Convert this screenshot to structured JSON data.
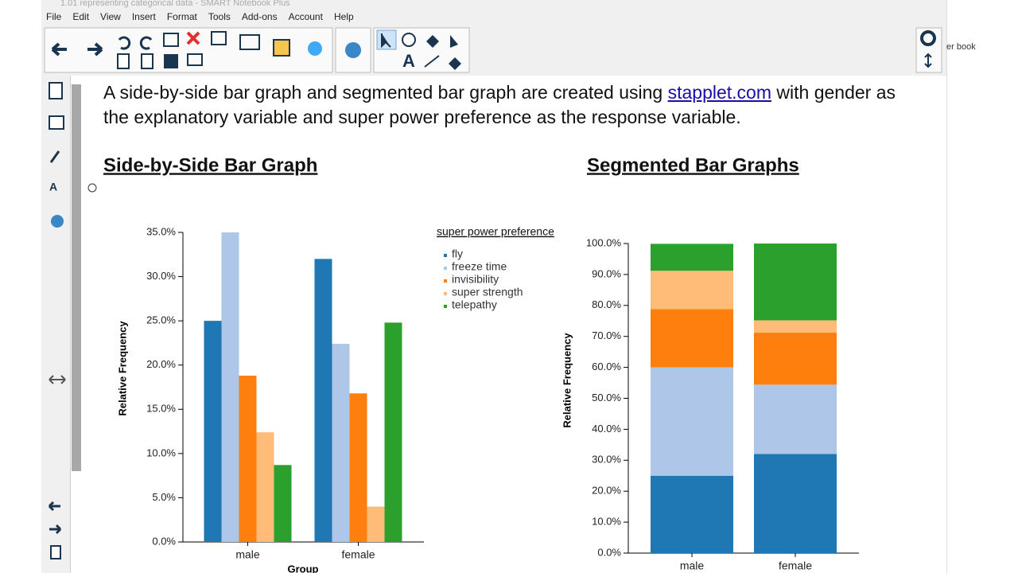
{
  "window": {
    "title": "1.01 representing categorical data - SMART Notebook Plus",
    "side_text": "er book"
  },
  "menu": [
    "File",
    "Edit",
    "View",
    "Insert",
    "Format",
    "Tools",
    "Add-ons",
    "Account",
    "Help"
  ],
  "slide": {
    "text_before": "A side-by-side bar graph and segmented bar graph are created using ",
    "link": "stapplet.com",
    "text_after": " with gender as the explanatory variable and super power preference as the response variable."
  },
  "chart_data": [
    {
      "type": "bar",
      "title": "Side-by-Side Bar Graph",
      "stacked": false,
      "categories": [
        "male",
        "female"
      ],
      "x_label": "Group",
      "y_label": "Relative Frequency",
      "legend": true,
      "legend_title": "super power preference",
      "series": [
        {
          "name": "fly",
          "color": "#1f77b4",
          "values": [
            25.0,
            32.0
          ]
        },
        {
          "name": "freeze time",
          "color": "#aec7e8",
          "values": [
            35.0,
            22.4
          ]
        },
        {
          "name": "invisibility",
          "color": "#ff7f0e",
          "values": [
            18.8,
            16.8
          ]
        },
        {
          "name": "super strength",
          "color": "#ffbb78",
          "values": [
            12.4,
            4.0
          ]
        },
        {
          "name": "telepathy",
          "color": "#2ca02c",
          "values": [
            8.7,
            24.8
          ]
        }
      ],
      "ylim": [
        0,
        35
      ],
      "yticks": [
        {
          "value": 0,
          "label": "0.0%"
        },
        {
          "value": 5,
          "label": "5.0%"
        },
        {
          "value": 10,
          "label": "10.0%"
        },
        {
          "value": 15,
          "label": "15.0%"
        },
        {
          "value": 20,
          "label": "20.0%"
        },
        {
          "value": 25,
          "label": "25.0%"
        },
        {
          "value": 30,
          "label": "30.0%"
        },
        {
          "value": 35,
          "label": "35.0%"
        }
      ]
    },
    {
      "type": "bar",
      "title": "Segmented Bar Graphs",
      "stacked": true,
      "categories": [
        "male",
        "female"
      ],
      "y_label": "Relative Frequency",
      "legend": false,
      "series": [
        {
          "color": "#1f77b4",
          "values": [
            25.0,
            32.0
          ]
        },
        {
          "color": "#aec7e8",
          "values": [
            35.0,
            22.4
          ]
        },
        {
          "color": "#ff7f0e",
          "values": [
            18.8,
            16.8
          ]
        },
        {
          "color": "#ffbb78",
          "values": [
            12.4,
            4.0
          ]
        },
        {
          "color": "#2ca02c",
          "values": [
            8.7,
            24.8
          ]
        }
      ],
      "ylim": [
        0,
        100
      ],
      "yticks": [
        {
          "value": 0,
          "label": "0.0%"
        },
        {
          "value": 10,
          "label": "10.0%"
        },
        {
          "value": 20,
          "label": "20.0%"
        },
        {
          "value": 30,
          "label": "30.0%"
        },
        {
          "value": 40,
          "label": "40.0%"
        },
        {
          "value": 50,
          "label": "50.0%"
        },
        {
          "value": 60,
          "label": "60.0%"
        },
        {
          "value": 70,
          "label": "70.0%"
        },
        {
          "value": 80,
          "label": "80.0%"
        },
        {
          "value": 90,
          "label": "90.0%"
        },
        {
          "value": 100,
          "label": "100.0%"
        }
      ]
    }
  ]
}
